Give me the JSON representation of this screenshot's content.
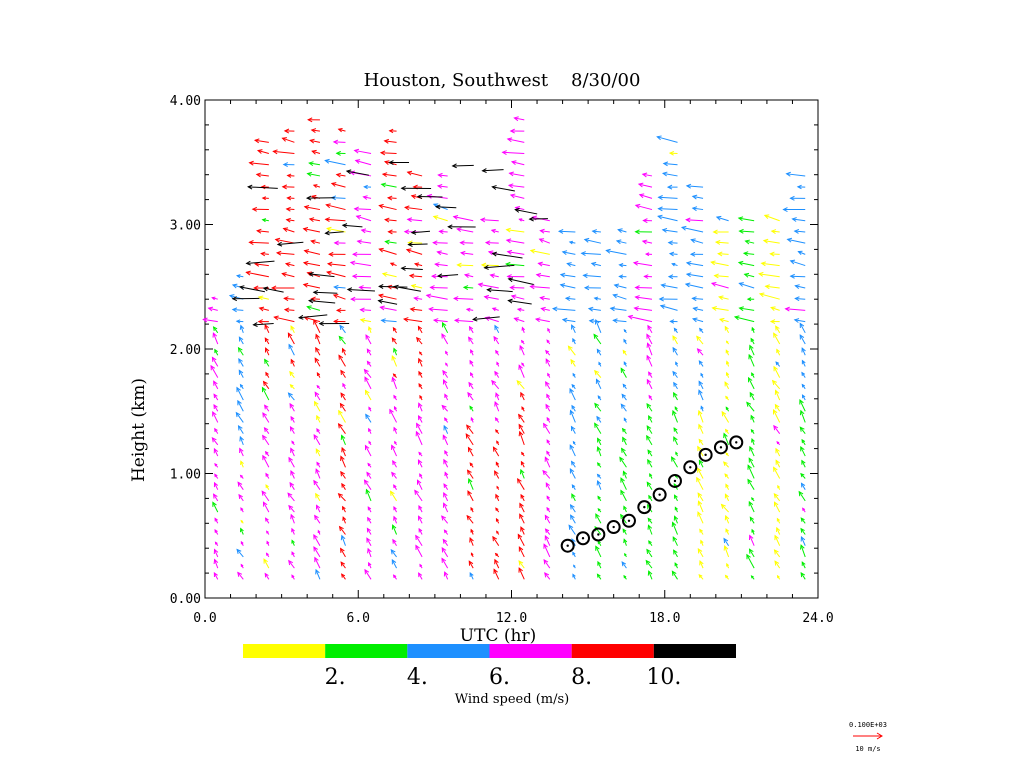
{
  "chart_data": {
    "type": "wind-profile",
    "title": "Houston, Southwest    8/30/00",
    "xlabel": "UTC (hr)",
    "ylabel": "Height (km)",
    "xlim": [
      0,
      24
    ],
    "ylim": [
      0,
      4
    ],
    "x_ticks": [
      0,
      6,
      12,
      18,
      24
    ],
    "x_tick_labels": [
      "0.0",
      "6.0",
      "12.0",
      "18.0",
      "24.0"
    ],
    "y_ticks": [
      0,
      1,
      2,
      3,
      4
    ],
    "y_tick_labels": [
      "0.00",
      "1.00",
      "2.00",
      "3.00",
      "4.00"
    ],
    "colorbar": {
      "label": "Wind speed (m/s)",
      "bins": [
        {
          "from": 0,
          "to": 2,
          "color": "#ffff00"
        },
        {
          "from": 2,
          "to": 4,
          "color": "#00ee00"
        },
        {
          "from": 4,
          "to": 6,
          "color": "#1e90ff"
        },
        {
          "from": 6,
          "to": 8,
          "color": "#ff00ff"
        },
        {
          "from": 8,
          "to": 10,
          "color": "#ff0000"
        },
        {
          "from": 10,
          "to": 12,
          "color": "#000000"
        }
      ],
      "tick_labels": [
        "2.",
        "4.",
        "6.",
        "8.",
        "10."
      ]
    },
    "reference_vector": {
      "scale_label": "0.100E+03",
      "label": "10 m/s",
      "color": "#ff0000"
    },
    "mixing_height_series": {
      "name": "mixing height",
      "x": [
        14.2,
        14.8,
        15.4,
        16.0,
        16.6,
        17.2,
        17.8,
        18.4,
        19.0,
        19.6,
        20.2,
        20.8
      ],
      "y": [
        0.42,
        0.48,
        0.51,
        0.57,
        0.62,
        0.73,
        0.83,
        0.94,
        1.05,
        1.15,
        1.21,
        1.25
      ]
    },
    "wind_profiles": [
      {
        "t": 0.5,
        "top": 2.4,
        "lower": "magenta",
        "upper": "magenta"
      },
      {
        "t": 1.5,
        "top": 2.6,
        "lower": "magenta",
        "upper": "blue"
      },
      {
        "t": 2.5,
        "top": 3.7,
        "lower": "magenta",
        "upper": "red"
      },
      {
        "t": 3.5,
        "top": 3.75,
        "lower": "magenta",
        "upper": "red"
      },
      {
        "t": 4.5,
        "top": 3.85,
        "lower": "magenta",
        "upper": "red"
      },
      {
        "t": 5.5,
        "top": 3.8,
        "lower": "red",
        "upper": "red"
      },
      {
        "t": 6.5,
        "top": 3.6,
        "lower": "magenta",
        "upper": "magenta"
      },
      {
        "t": 7.5,
        "top": 3.75,
        "lower": "magenta",
        "upper": "red"
      },
      {
        "t": 8.5,
        "top": 3.4,
        "lower": "magenta",
        "upper": "red"
      },
      {
        "t": 9.5,
        "top": 3.4,
        "lower": "magenta",
        "upper": "magenta"
      },
      {
        "t": 10.5,
        "top": 3.1,
        "lower": "red",
        "upper": "magenta"
      },
      {
        "t": 11.5,
        "top": 3.1,
        "lower": "red",
        "upper": "magenta"
      },
      {
        "t": 12.5,
        "top": 3.85,
        "lower": "red",
        "upper": "magenta"
      },
      {
        "t": 13.5,
        "top": 3.1,
        "lower": "magenta",
        "upper": "magenta"
      },
      {
        "t": 14.5,
        "top": 3.0,
        "lower": "blue",
        "upper": "blue"
      },
      {
        "t": 15.5,
        "top": 3.0,
        "lower": "green",
        "upper": "blue"
      },
      {
        "t": 16.5,
        "top": 3.0,
        "lower": "green",
        "upper": "blue"
      },
      {
        "t": 17.5,
        "top": 3.4,
        "lower": "green",
        "upper": "magenta"
      },
      {
        "t": 18.5,
        "top": 3.7,
        "lower": "green",
        "upper": "blue"
      },
      {
        "t": 19.5,
        "top": 3.3,
        "lower": "yellow",
        "upper": "blue"
      },
      {
        "t": 20.5,
        "top": 3.1,
        "lower": "yellow",
        "upper": "yellow"
      },
      {
        "t": 21.5,
        "top": 3.1,
        "lower": "green",
        "upper": "green"
      },
      {
        "t": 22.5,
        "top": 3.1,
        "lower": "yellow",
        "upper": "yellow"
      },
      {
        "t": 23.5,
        "top": 3.4,
        "lower": "green",
        "upper": "blue"
      }
    ],
    "black_vectors_region": {
      "t_range": [
        2.0,
        13.5
      ],
      "height_range": [
        2.2,
        3.6
      ],
      "speed": "over 10 m/s"
    }
  }
}
